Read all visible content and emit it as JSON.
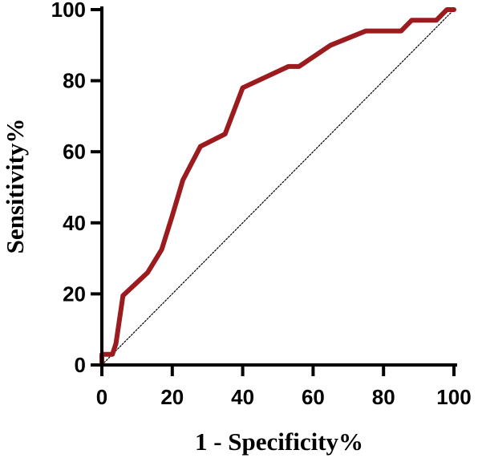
{
  "chart_data": {
    "type": "line",
    "title": "",
    "xlabel": "1 - Specificity%",
    "ylabel": "Sensitivity%",
    "xlim": [
      0,
      100
    ],
    "ylim": [
      0,
      100
    ],
    "xticks": [
      0,
      20,
      40,
      60,
      80,
      100
    ],
    "yticks": [
      0,
      20,
      40,
      60,
      80,
      100
    ],
    "grid": false,
    "legend": "none",
    "series": [
      {
        "color": "#9b1b1f",
        "x": [
          0,
          0,
          3,
          4,
          6,
          13,
          17,
          20,
          23,
          28,
          35,
          40,
          53,
          56,
          65,
          75,
          85,
          88,
          95,
          98,
          100
        ],
        "y": [
          0,
          3,
          3,
          6,
          19.5,
          26,
          32.5,
          42,
          52,
          61.5,
          65,
          78,
          84,
          84,
          90,
          94,
          94,
          97,
          97,
          100,
          100
        ]
      },
      {
        "color": "#000000",
        "style": "dotted",
        "x": [
          0,
          100
        ],
        "y": [
          0,
          100
        ]
      }
    ]
  }
}
